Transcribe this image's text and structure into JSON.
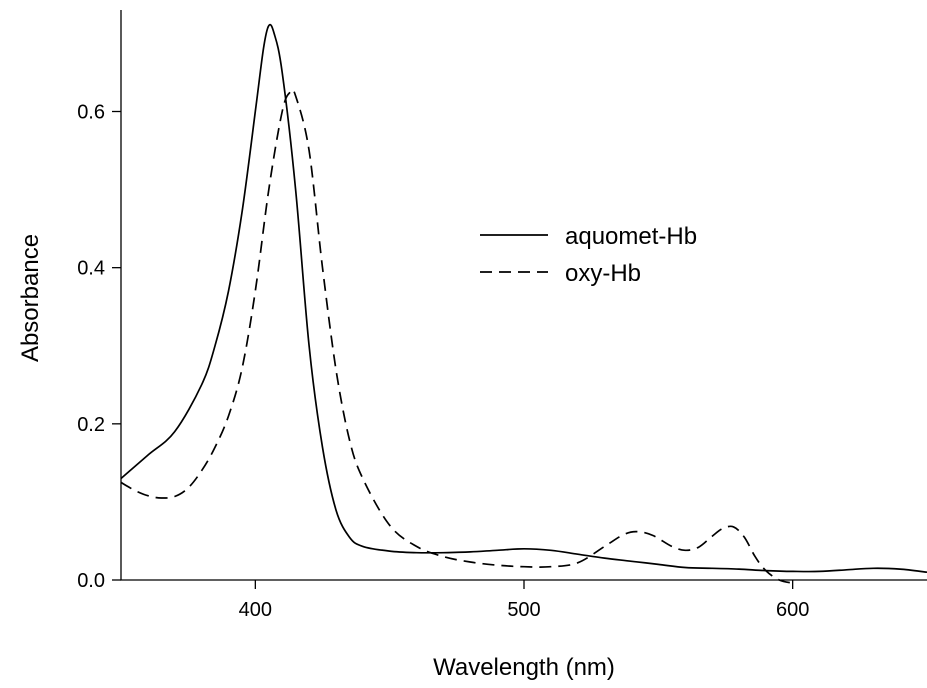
{
  "chart_data": {
    "type": "line",
    "title": "",
    "xlabel": "Wavelength (nm)",
    "ylabel": "Absorbance",
    "xlim": [
      350,
      650
    ],
    "ylim": [
      0,
      0.73
    ],
    "xticks": [
      400,
      500,
      600
    ],
    "yticks": [
      0.0,
      0.2,
      0.4,
      0.6
    ],
    "x_tick_labels": [
      "400",
      "500",
      "600"
    ],
    "y_tick_labels": [
      "0.0",
      "0.2",
      "0.4",
      "0.6"
    ],
    "grid": false,
    "legend": "center-right",
    "series": [
      {
        "name": "aquomet-Hb",
        "style": "solid",
        "color": "#000000",
        "x": [
          350,
          360,
          370,
          380,
          385,
          390,
          395,
          400,
          403,
          405,
          407,
          410,
          415,
          420,
          425,
          430,
          435,
          440,
          450,
          460,
          470,
          480,
          490,
          500,
          510,
          520,
          530,
          540,
          550,
          560,
          570,
          580,
          590,
          600,
          610,
          620,
          630,
          640,
          650
        ],
        "y": [
          0.13,
          0.16,
          0.19,
          0.25,
          0.3,
          0.37,
          0.47,
          0.6,
          0.68,
          0.71,
          0.7,
          0.65,
          0.5,
          0.3,
          0.17,
          0.09,
          0.055,
          0.043,
          0.037,
          0.035,
          0.035,
          0.036,
          0.038,
          0.04,
          0.038,
          0.033,
          0.028,
          0.024,
          0.02,
          0.016,
          0.015,
          0.014,
          0.012,
          0.011,
          0.011,
          0.013,
          0.015,
          0.014,
          0.01
        ]
      },
      {
        "name": "oxy-Hb",
        "style": "dashed",
        "color": "#000000",
        "x": [
          350,
          355,
          360,
          365,
          370,
          375,
          380,
          385,
          390,
          395,
          400,
          405,
          410,
          413,
          415,
          420,
          425,
          430,
          435,
          440,
          450,
          460,
          470,
          480,
          490,
          500,
          510,
          520,
          530,
          537,
          542,
          548,
          555,
          560,
          565,
          570,
          574,
          578,
          582,
          586,
          590,
          595,
          600
        ],
        "y": [
          0.125,
          0.115,
          0.108,
          0.105,
          0.107,
          0.118,
          0.14,
          0.17,
          0.21,
          0.27,
          0.37,
          0.5,
          0.6,
          0.625,
          0.62,
          0.55,
          0.4,
          0.27,
          0.18,
          0.13,
          0.07,
          0.043,
          0.03,
          0.023,
          0.019,
          0.017,
          0.017,
          0.022,
          0.043,
          0.058,
          0.062,
          0.057,
          0.043,
          0.038,
          0.042,
          0.056,
          0.066,
          0.068,
          0.055,
          0.03,
          0.012,
          0.0,
          -0.004
        ]
      }
    ]
  }
}
